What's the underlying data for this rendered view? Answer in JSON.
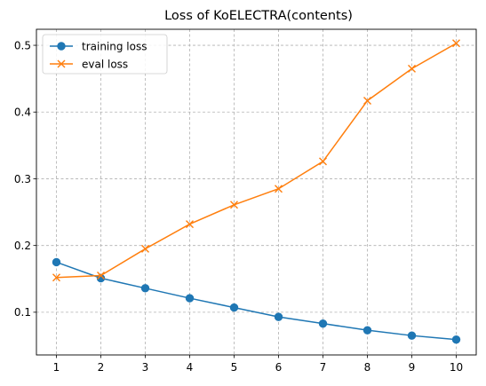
{
  "chart_data": {
    "type": "line",
    "title": "Loss of KoELECTRA(contents)",
    "xlabel": "",
    "ylabel": "",
    "x": [
      1,
      2,
      3,
      4,
      5,
      6,
      7,
      8,
      9,
      10
    ],
    "xticks": [
      "1",
      "2",
      "3",
      "4",
      "5",
      "6",
      "7",
      "8",
      "9",
      "10"
    ],
    "yticks": [
      "0.1",
      "0.2",
      "0.3",
      "0.4",
      "0.5"
    ],
    "xlim": [
      0.55,
      10.45
    ],
    "ylim": [
      0.036,
      0.524
    ],
    "grid": true,
    "legend_position": "top-left",
    "series": [
      {
        "name": "training loss",
        "marker": "circle",
        "color": "#1f77b4",
        "values": [
          0.175,
          0.151,
          0.136,
          0.121,
          0.107,
          0.093,
          0.083,
          0.073,
          0.065,
          0.059
        ]
      },
      {
        "name": "eval loss",
        "marker": "x",
        "color": "#ff7f0e",
        "values": [
          0.152,
          0.155,
          0.195,
          0.232,
          0.261,
          0.285,
          0.326,
          0.417,
          0.465,
          0.503
        ]
      }
    ]
  }
}
